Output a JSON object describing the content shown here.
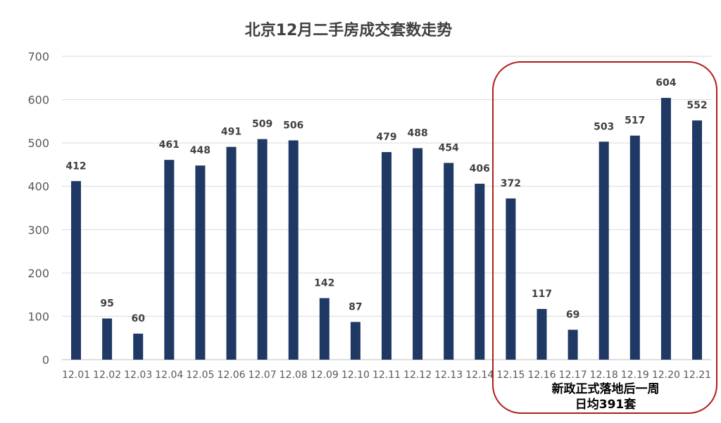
{
  "chart_data": {
    "type": "bar",
    "title": "北京12月二手房成交套数走势",
    "xlabel": "",
    "ylabel": "",
    "categories": [
      "12.01",
      "12.02",
      "12.03",
      "12.04",
      "12.05",
      "12.06",
      "12.07",
      "12.08",
      "12.09",
      "12.10",
      "12.11",
      "12.12",
      "12.13",
      "12.14",
      "12.15",
      "12.16",
      "12.17",
      "12.18",
      "12.19",
      "12.20",
      "12.21"
    ],
    "values": [
      412,
      95,
      60,
      461,
      448,
      491,
      509,
      506,
      142,
      87,
      479,
      488,
      454,
      406,
      372,
      117,
      69,
      503,
      517,
      604,
      552
    ],
    "ylim": [
      0,
      700
    ],
    "yticks": [
      0,
      100,
      200,
      300,
      400,
      500,
      600,
      700
    ],
    "grid": true,
    "annotation": {
      "line1": "新政正式落地后一周",
      "line2": "日均391套",
      "highlight_range": [
        "12.15",
        "12.21"
      ]
    }
  },
  "colors": {
    "bar": "#1f3864",
    "highlight_border": "#b01c1c",
    "grid": "#d9d9d9",
    "axis_text": "#595959",
    "title": "#404040",
    "label": "#404040"
  }
}
